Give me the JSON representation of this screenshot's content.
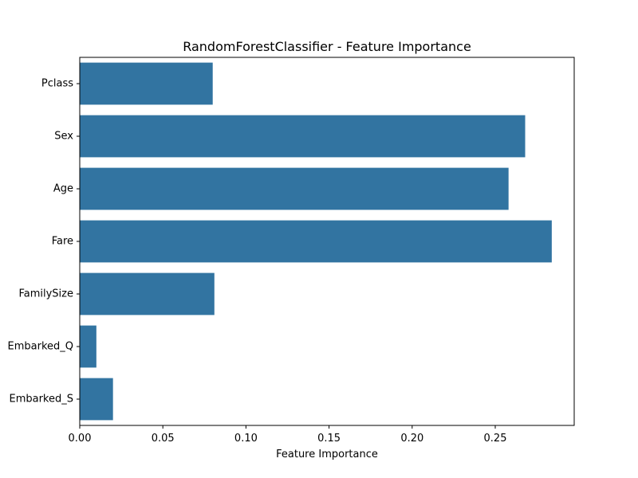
{
  "chart_data": {
    "type": "bar",
    "orientation": "horizontal",
    "title": "RandomForestClassifier - Feature Importance",
    "xlabel": "Feature Importance",
    "ylabel": "",
    "categories": [
      "Pclass",
      "Sex",
      "Age",
      "Fare",
      "FamilySize",
      "Embarked_Q",
      "Embarked_S"
    ],
    "values": [
      0.08,
      0.268,
      0.258,
      0.284,
      0.081,
      0.01,
      0.02
    ],
    "xlim": [
      0,
      0.2975
    ],
    "xticks": [
      0.0,
      0.05,
      0.1,
      0.15,
      0.2,
      0.25
    ],
    "xtick_labels": [
      "0.00",
      "0.05",
      "0.10",
      "0.15",
      "0.20",
      "0.25"
    ],
    "grid": false,
    "legend": "none",
    "bar_color": "#3274a1"
  }
}
